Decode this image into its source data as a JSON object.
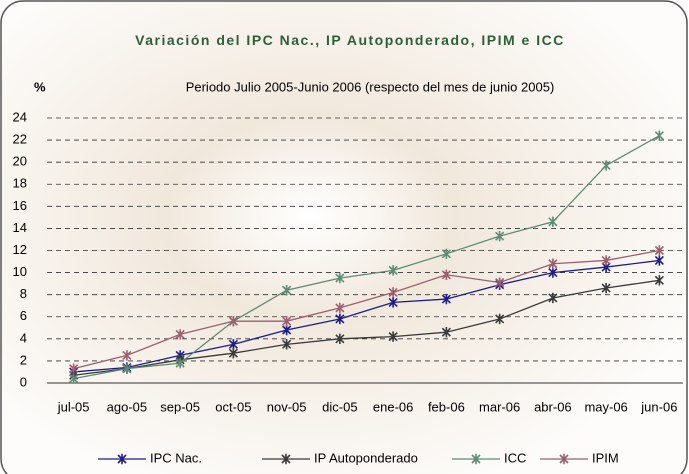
{
  "chart_data": {
    "type": "line",
    "title": "Variación del IPC Nac., IP Autoponderado, IPIM e ICC",
    "subtitle": "Periodo Julio 2005-Junio 2006 (respecto del mes de junio 2005)",
    "y_label": "%",
    "categories": [
      "jul-05",
      "ago-05",
      "sep-05",
      "oct-05",
      "nov-05",
      "dic-05",
      "ene-06",
      "feb-06",
      "mar-06",
      "abr-06",
      "may-06",
      "jun-06"
    ],
    "series": [
      {
        "name": "IPC Nac.",
        "color": "#1c1c8a",
        "values": [
          1.0,
          1.4,
          2.5,
          3.5,
          4.8,
          5.8,
          7.3,
          7.6,
          8.9,
          10.0,
          10.5,
          11.1
        ]
      },
      {
        "name": "IP Autoponderado",
        "color": "#3a3a3a",
        "values": [
          0.7,
          1.3,
          2.1,
          2.7,
          3.5,
          4.0,
          4.2,
          4.6,
          5.8,
          7.7,
          8.6,
          9.3
        ]
      },
      {
        "name": "ICC",
        "color": "#5d8b73",
        "values": [
          0.4,
          1.3,
          1.8,
          5.6,
          8.4,
          9.5,
          10.2,
          11.7,
          13.3,
          14.6,
          19.7,
          22.4
        ]
      },
      {
        "name": "IPIM",
        "color": "#9b5f6f",
        "values": [
          1.3,
          2.5,
          4.4,
          5.6,
          5.6,
          6.8,
          8.2,
          9.8,
          9.1,
          10.8,
          11.1,
          12.0
        ]
      }
    ],
    "ylim": [
      0,
      24
    ],
    "yticks": [
      0,
      2,
      4,
      6,
      8,
      10,
      12,
      14,
      16,
      18,
      20,
      22,
      24
    ],
    "grid": true,
    "legend": "bottom"
  }
}
